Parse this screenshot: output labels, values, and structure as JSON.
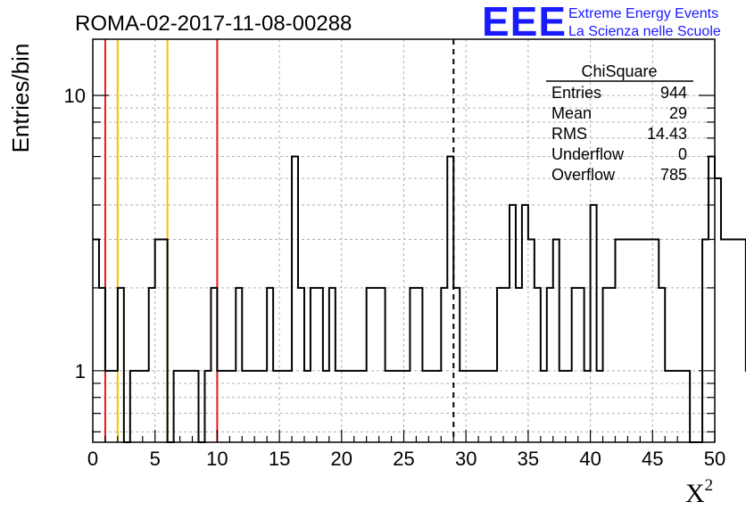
{
  "chart_data": {
    "type": "histogram",
    "title": "ROMA-02-2017-11-08-00288",
    "xlabel": "X",
    "xlabel_superscript": "2",
    "ylabel": "Entries/bin",
    "xlim": [
      0,
      50
    ],
    "ylim": [
      0.55,
      16
    ],
    "yscale": "log",
    "grid": true,
    "bin_width": 0.5,
    "x_ticks": [
      0,
      5,
      10,
      15,
      20,
      25,
      30,
      35,
      40,
      45,
      50
    ],
    "y_ticks": [
      1,
      10
    ],
    "values": [
      3,
      2,
      1,
      1,
      2,
      0,
      1,
      1,
      1,
      2,
      3,
      3,
      0,
      1,
      1,
      1,
      1,
      0,
      1,
      2,
      1,
      1,
      1,
      2,
      1,
      1,
      1,
      1,
      2,
      1,
      1,
      1,
      6,
      2,
      1,
      2,
      2,
      1,
      2,
      1,
      1,
      1,
      1,
      1,
      2,
      2,
      2,
      1,
      1,
      1,
      1,
      2,
      2,
      1,
      1,
      1,
      2,
      6,
      2,
      1,
      1,
      1,
      1,
      1,
      1,
      2,
      2,
      4,
      2,
      4,
      3,
      2,
      1,
      2,
      3,
      1,
      1,
      2,
      2,
      1,
      4,
      1,
      2,
      2,
      3,
      3,
      3,
      3,
      3,
      3,
      3,
      2,
      1,
      1,
      1,
      1,
      0,
      0,
      3,
      6,
      5,
      3,
      3,
      3,
      3,
      1,
      1,
      1,
      1,
      1,
      1,
      2,
      2,
      2,
      2,
      1,
      3,
      3,
      3,
      3,
      3,
      2,
      2,
      2,
      1,
      1,
      1,
      1,
      1,
      1,
      1,
      3,
      2,
      4,
      3,
      2,
      2,
      2,
      2,
      2,
      2,
      3,
      3,
      3,
      3,
      3,
      2,
      1,
      1,
      2,
      2,
      1,
      1,
      2,
      3,
      3,
      3,
      2,
      2,
      2,
      3,
      3,
      3,
      3,
      1,
      1,
      1,
      1,
      2,
      2,
      2,
      2,
      4,
      2,
      2,
      2,
      3,
      5,
      3,
      3,
      3,
      3,
      3,
      3,
      2,
      2,
      2,
      3,
      3,
      3,
      1,
      1,
      1,
      4,
      4,
      4,
      4,
      3,
      3,
      3,
      3,
      5,
      7,
      7,
      7,
      7,
      5,
      5,
      6,
      6,
      6,
      3,
      3,
      3,
      3,
      1,
      1,
      1,
      1,
      1,
      1,
      1,
      5,
      5,
      5,
      5,
      5,
      5,
      6,
      6,
      6,
      6,
      2,
      2,
      2,
      2,
      2,
      2,
      2,
      2
    ],
    "vertical_lines": [
      {
        "x": 1,
        "color": "#e31a1c",
        "style": "solid"
      },
      {
        "x": 2,
        "color": "#f5c400",
        "style": "solid"
      },
      {
        "x": 6,
        "color": "#f5c400",
        "style": "solid"
      },
      {
        "x": 10,
        "color": "#e31a1c",
        "style": "solid"
      },
      {
        "x": 29,
        "color": "#000000",
        "style": "dashed"
      }
    ],
    "stats_box": {
      "title": "ChiSquare",
      "rows": [
        {
          "label": "Entries",
          "value": "944"
        },
        {
          "label": "Mean",
          "value": "29"
        },
        {
          "label": "RMS",
          "value": "14.43"
        },
        {
          "label": "Underflow",
          "value": "0"
        },
        {
          "label": "Overflow",
          "value": "785"
        }
      ]
    }
  },
  "logo": {
    "mark": "EEE",
    "line1": "Extreme Energy Events",
    "line2": "La Scienza nelle Scuole",
    "color": "#1a1aff"
  }
}
